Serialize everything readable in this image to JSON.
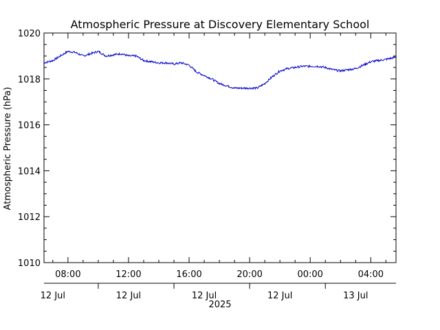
{
  "chart_data": {
    "type": "line",
    "title": "Atmospheric Pressure at Discovery Elementary School",
    "xlabel": "",
    "ylabel": "Atmospheric Pressure (hPa)",
    "ylim": [
      1010,
      1020
    ],
    "yticks": [
      1010,
      1012,
      1014,
      1016,
      1018,
      1020
    ],
    "ytick_labels": [
      "1010",
      "1012",
      "1014",
      "1016",
      "1018",
      "1020"
    ],
    "xlim": [
      "2025-07-12 06:25",
      "2025-07-13 05:40"
    ],
    "xticks": [
      "2025-07-12 08:00",
      "2025-07-12 12:00",
      "2025-07-12 16:00",
      "2025-07-12 20:00",
      "2025-07-13 00:00",
      "2025-07-13 04:00"
    ],
    "xtick_labels": [
      "08:00",
      "12:00",
      "16:00",
      "20:00",
      "00:00",
      "04:00"
    ],
    "date_labels": [
      "12 Jul",
      "12 Jul",
      "12 Jul",
      "12 Jul",
      "13 Jul"
    ],
    "date_label_positions": [
      "2025-07-12 07:00",
      "2025-07-12 12:00",
      "2025-07-12 17:00",
      "2025-07-12 22:00",
      "2025-07-13 03:00"
    ],
    "year_label": "2025",
    "grid": false,
    "series": [
      {
        "color": "#0000cc",
        "x": [
          "2025-07-12 06:25",
          "2025-07-12 07:00",
          "2025-07-12 07:30",
          "2025-07-12 08:00",
          "2025-07-12 08:30",
          "2025-07-12 09:00",
          "2025-07-12 09:30",
          "2025-07-12 10:00",
          "2025-07-12 10:30",
          "2025-07-12 11:00",
          "2025-07-12 11:30",
          "2025-07-12 12:00",
          "2025-07-12 12:30",
          "2025-07-12 13:00",
          "2025-07-12 13:30",
          "2025-07-12 14:00",
          "2025-07-12 14:30",
          "2025-07-12 15:00",
          "2025-07-12 15:30",
          "2025-07-12 16:00",
          "2025-07-12 16:30",
          "2025-07-12 17:00",
          "2025-07-12 17:30",
          "2025-07-12 18:00",
          "2025-07-12 18:30",
          "2025-07-12 19:00",
          "2025-07-12 19:30",
          "2025-07-12 20:00",
          "2025-07-12 20:30",
          "2025-07-12 21:00",
          "2025-07-12 21:30",
          "2025-07-12 22:00",
          "2025-07-12 22:30",
          "2025-07-12 23:00",
          "2025-07-12 23:30",
          "2025-07-13 00:00",
          "2025-07-13 00:30",
          "2025-07-13 01:00",
          "2025-07-13 01:30",
          "2025-07-13 02:00",
          "2025-07-13 02:30",
          "2025-07-13 03:00",
          "2025-07-13 03:30",
          "2025-07-13 04:00",
          "2025-07-13 04:30",
          "2025-07-13 05:00",
          "2025-07-13 05:40"
        ],
        "y": [
          1018.7,
          1018.8,
          1019.0,
          1019.2,
          1019.15,
          1019.0,
          1019.1,
          1019.2,
          1019.0,
          1019.05,
          1019.1,
          1019.0,
          1019.0,
          1018.8,
          1018.75,
          1018.7,
          1018.7,
          1018.65,
          1018.7,
          1018.6,
          1018.3,
          1018.15,
          1018.0,
          1017.8,
          1017.7,
          1017.6,
          1017.6,
          1017.6,
          1017.6,
          1017.8,
          1018.1,
          1018.35,
          1018.45,
          1018.5,
          1018.55,
          1018.55,
          1018.55,
          1018.5,
          1018.4,
          1018.35,
          1018.4,
          1018.45,
          1018.6,
          1018.75,
          1018.8,
          1018.85,
          1018.95
        ]
      }
    ]
  }
}
